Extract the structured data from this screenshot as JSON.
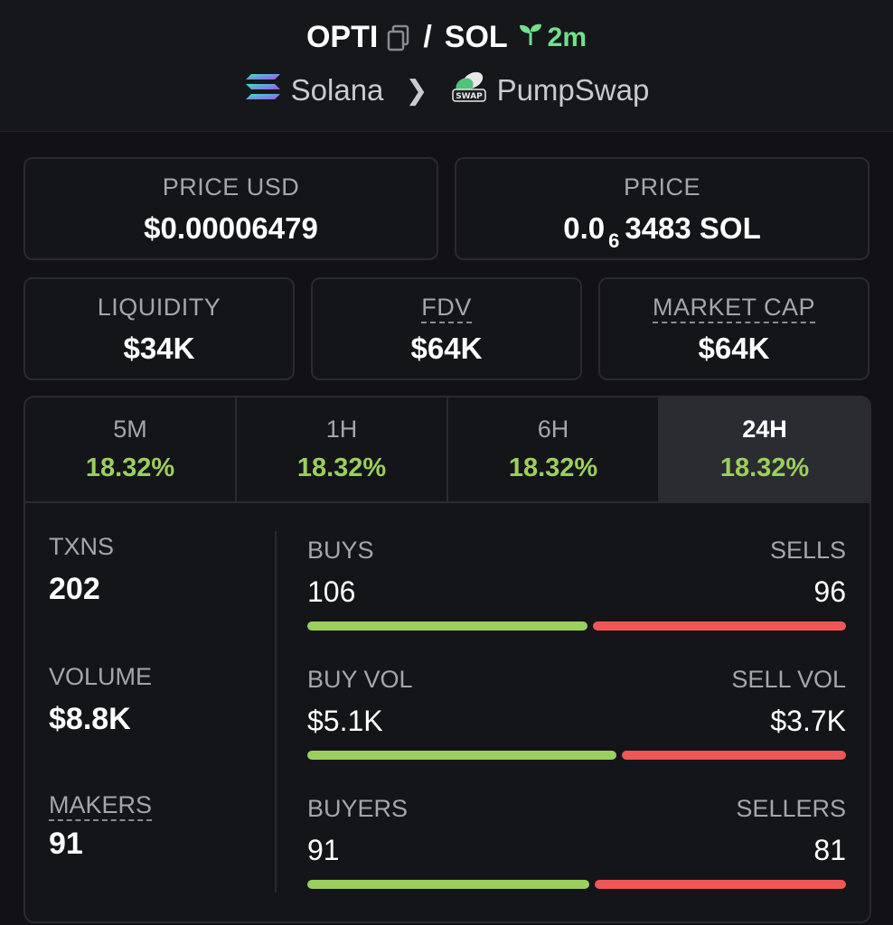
{
  "header": {
    "base_token": "OPTI",
    "separator": "/",
    "quote_token": "SOL",
    "age": "2m",
    "chain": "Solana",
    "dex": "PumpSwap",
    "dex_badge": "SWAP"
  },
  "cards": {
    "price_usd": {
      "label": "PRICE USD",
      "value": "$0.00006479"
    },
    "price": {
      "label": "PRICE",
      "value_prefix": "0.0",
      "value_sub": "6",
      "value_suffix": "3483 SOL"
    },
    "liquidity": {
      "label": "LIQUIDITY",
      "value": "$34K"
    },
    "fdv": {
      "label": "FDV",
      "value": "$64K"
    },
    "market_cap": {
      "label": "MARKET CAP",
      "value": "$64K"
    }
  },
  "tabs": [
    {
      "label": "5M",
      "value": "18.32%"
    },
    {
      "label": "1H",
      "value": "18.32%"
    },
    {
      "label": "6H",
      "value": "18.32%"
    },
    {
      "label": "24H",
      "value": "18.32%"
    }
  ],
  "active_tab": "24H",
  "metrics": {
    "txns": {
      "label": "TXNS",
      "value": "202"
    },
    "volume": {
      "label": "VOLUME",
      "value": "$8.8K"
    },
    "makers": {
      "label": "MAKERS",
      "value": "91"
    }
  },
  "bars": {
    "txns": {
      "left_label": "BUYS",
      "right_label": "SELLS",
      "left_value": "106",
      "right_value": "96",
      "buy_share": 0.525
    },
    "volume": {
      "left_label": "BUY VOL",
      "right_label": "SELL VOL",
      "left_value": "$5.1K",
      "right_value": "$3.7K",
      "buy_share": 0.58
    },
    "makers": {
      "left_label": "BUYERS",
      "right_label": "SELLERS",
      "left_value": "91",
      "right_value": "81",
      "buy_share": 0.529
    }
  },
  "colors": {
    "positive": "#9bd05c",
    "negative": "#ef5656",
    "age_green": "#6fe28a",
    "background": "#121216"
  }
}
